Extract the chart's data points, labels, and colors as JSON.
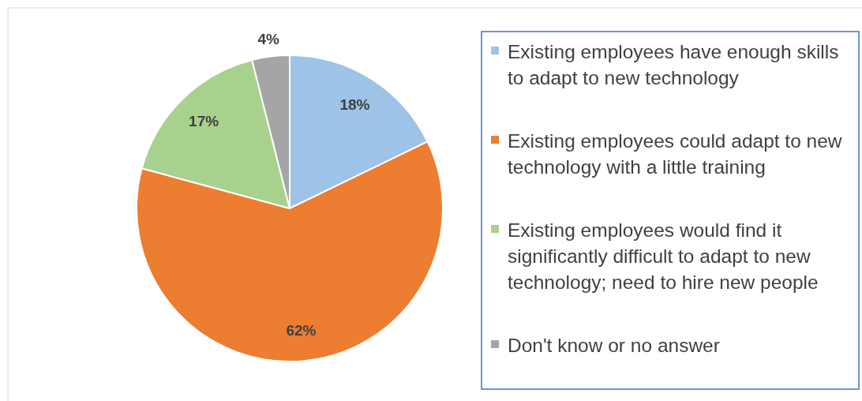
{
  "chart_data": {
    "type": "pie",
    "categories": [
      "Existing employees have enough skills to adapt to new technology",
      "Existing employees could adapt to new technology with a little training",
      "Existing employees would find it significantly difficult to adapt to new technology; need to hire new people",
      "Don't know or no answer"
    ],
    "values": [
      18,
      62,
      17,
      4
    ],
    "colors": [
      "#9dc3e6",
      "#ed7d31",
      "#a9d18e",
      "#a5a5a5"
    ],
    "value_labels": [
      "18%",
      "62%",
      "17%",
      "4%"
    ],
    "legend": "right"
  }
}
